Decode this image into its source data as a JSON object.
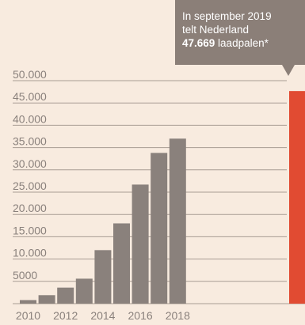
{
  "chart_data": {
    "type": "bar",
    "categories": [
      "2010",
      "2011",
      "2012",
      "2013",
      "2014",
      "2015",
      "2016",
      "2017",
      "2018",
      "2019"
    ],
    "values": [
      800,
      1900,
      3600,
      5600,
      12000,
      18000,
      26700,
      33800,
      37000,
      47669
    ],
    "highlight_index": 9,
    "x_tick_labels": [
      "2010",
      "2012",
      "2014",
      "2016",
      "2018"
    ],
    "y_ticks": [
      "5000",
      "10.000",
      "15.000",
      "20.000",
      "25.000",
      "30.000",
      "35.000",
      "40.000",
      "45.000",
      "50.000"
    ],
    "ylim": [
      0,
      50000
    ],
    "grid": true,
    "title": "",
    "xlabel": "",
    "ylabel": "",
    "colors": {
      "bar": "#8a817c",
      "highlight": "#e14b32",
      "grid": "#a89c93",
      "axis_text": "#8a817c",
      "background": "#f8ebdf"
    }
  },
  "callout": {
    "line1": "In september 2019",
    "line2": "telt Nederland",
    "value": "47.669",
    "suffix": " laadpalen*"
  }
}
